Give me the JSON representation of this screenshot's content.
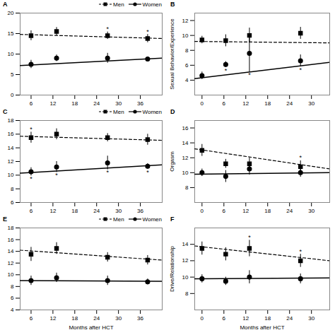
{
  "chart_data": [
    {
      "type": "scatter",
      "title": "A",
      "x": [
        6,
        13,
        27,
        38
      ],
      "xlim": [
        3,
        42
      ],
      "xticks": [
        6,
        12,
        18,
        24,
        30,
        36
      ],
      "ylim": [
        0,
        20
      ],
      "yticks": [
        0,
        5,
        10,
        15,
        20
      ],
      "legend": "upper right",
      "series": [
        {
          "name": "Men",
          "color": "black",
          "marker": "square",
          "line_style": "dashed",
          "values": [
            14.5,
            15.5,
            14.5,
            13.8
          ],
          "errors": [
            1.2,
            1.0,
            0.9,
            1.0
          ],
          "annotations": [
            null,
            null,
            "*",
            "*"
          ],
          "trend": {
            "x": [
              3,
              42
            ],
            "values": [
              14.8,
              13.8
            ]
          }
        },
        {
          "name": "Women",
          "color": "black",
          "marker": "circle",
          "line_style": "solid",
          "values": [
            7.5,
            9.0,
            9.0,
            8.8
          ],
          "errors": [
            1.0,
            0.8,
            1.2,
            0.5
          ],
          "annotations": [
            null,
            null,
            null,
            null
          ],
          "trend": {
            "x": [
              3,
              42
            ],
            "values": [
              7.2,
              9.0
            ]
          }
        }
      ]
    },
    {
      "type": "scatter",
      "title": "B",
      "ylabel": "Sexual Behavior/Experience",
      "x": [
        0,
        6.5,
        13,
        27
      ],
      "xlim": [
        -2,
        35
      ],
      "xticks": [
        0,
        6,
        12,
        18,
        24,
        30
      ],
      "ylim": [
        2,
        13
      ],
      "yticks": [
        4,
        6,
        8,
        10,
        12
      ],
      "series": [
        {
          "name": "Men",
          "color": "black",
          "marker": "square",
          "line_style": "dashed",
          "values": [
            9.4,
            9.3,
            10.0,
            10.3
          ],
          "errors": [
            0.5,
            0.8,
            1.0,
            0.8
          ],
          "annotations": [
            null,
            null,
            null,
            null
          ],
          "trend": {
            "x": [
              -2,
              35
            ],
            "values": [
              9.2,
              9.0
            ]
          }
        },
        {
          "name": "Women",
          "color": "black",
          "marker": "circle",
          "line_style": "solid",
          "values": [
            4.6,
            6.1,
            7.6,
            6.6
          ],
          "errors": [
            0.5,
            0.4,
            2.5,
            0.8
          ],
          "annotations": [
            null,
            "*",
            "*",
            "*"
          ],
          "trend": {
            "x": [
              -2,
              35
            ],
            "values": [
              4.2,
              6.4
            ]
          }
        }
      ]
    },
    {
      "type": "scatter",
      "title": "C",
      "x": [
        6,
        13,
        27,
        38
      ],
      "xlim": [
        3,
        42
      ],
      "xticks": [
        6,
        12,
        18,
        24,
        30,
        36
      ],
      "ylim": [
        6,
        18
      ],
      "yticks": [
        6,
        8,
        10,
        12,
        14,
        16,
        18
      ],
      "legend": "upper right",
      "series": [
        {
          "name": "Men",
          "color": "black",
          "marker": "square",
          "line_style": "dashed",
          "values": [
            15.5,
            16.0,
            15.5,
            15.2
          ],
          "errors": [
            0.8,
            0.8,
            0.6,
            0.8
          ],
          "annotations": [
            "*",
            null,
            null,
            null
          ],
          "trend": {
            "x": [
              3,
              42
            ],
            "values": [
              15.7,
              15.1
            ]
          }
        },
        {
          "name": "Women",
          "color": "black",
          "marker": "circle",
          "line_style": "solid",
          "values": [
            10.5,
            11.2,
            11.8,
            11.3
          ],
          "errors": [
            0.6,
            0.8,
            1.0,
            0.4
          ],
          "annotations": [
            "*",
            "*",
            "*",
            "*"
          ],
          "trend": {
            "x": [
              3,
              42
            ],
            "values": [
              10.3,
              11.5
            ]
          }
        }
      ]
    },
    {
      "type": "scatter",
      "title": "D",
      "ylabel": "Orgasm",
      "x": [
        0,
        6.5,
        13,
        27
      ],
      "xlim": [
        -2,
        35
      ],
      "xticks": [
        0,
        6,
        12,
        18,
        24,
        30
      ],
      "ylim": [
        6,
        17
      ],
      "yticks": [
        8,
        10,
        12,
        14,
        16
      ],
      "series": [
        {
          "name": "Men",
          "color": "black",
          "marker": "square",
          "line_style": "dashed",
          "values": [
            13.0,
            11.2,
            11.2,
            10.8
          ],
          "errors": [
            0.8,
            0.6,
            0.8,
            0.8
          ],
          "annotations": [
            null,
            null,
            null,
            "*"
          ],
          "trend": {
            "x": [
              -2,
              35
            ],
            "values": [
              13.2,
              10.5
            ]
          }
        },
        {
          "name": "Women",
          "color": "black",
          "marker": "circle",
          "line_style": "solid",
          "values": [
            10.0,
            9.5,
            10.5,
            10.0
          ],
          "errors": [
            0.5,
            0.8,
            0.8,
            0.6
          ],
          "annotations": [
            null,
            null,
            null,
            null
          ],
          "trend": {
            "x": [
              -2,
              35
            ],
            "values": [
              9.8,
              10.0
            ]
          }
        }
      ]
    },
    {
      "type": "scatter",
      "title": "E",
      "xlabel": "Months after HCT",
      "x": [
        6,
        13,
        27,
        38
      ],
      "xlim": [
        3,
        42
      ],
      "xticks": [
        6,
        12,
        18,
        24,
        30,
        36
      ],
      "ylim": [
        4,
        18
      ],
      "yticks": [
        4,
        6,
        8,
        10,
        12,
        14,
        16,
        18
      ],
      "legend": "upper right",
      "series": [
        {
          "name": "Men",
          "color": "black",
          "marker": "square",
          "line_style": "dashed",
          "values": [
            13.5,
            14.5,
            13.0,
            12.5
          ],
          "errors": [
            1.2,
            1.0,
            0.8,
            0.8
          ],
          "annotations": [
            null,
            null,
            null,
            null
          ],
          "trend": {
            "x": [
              3,
              42
            ],
            "values": [
              14.2,
              12.5
            ]
          }
        },
        {
          "name": "Women",
          "color": "black",
          "marker": "circle",
          "line_style": "solid",
          "values": [
            9.0,
            9.5,
            9.0,
            8.8
          ],
          "errors": [
            0.8,
            0.8,
            0.8,
            0.5
          ],
          "annotations": [
            null,
            null,
            null,
            null
          ],
          "trend": {
            "x": [
              3,
              42
            ],
            "values": [
              9.0,
              8.9
            ]
          }
        }
      ]
    },
    {
      "type": "scatter",
      "title": "F",
      "ylabel": "Drive/Relationship",
      "xlabel": "Months after HCT",
      "x": [
        0,
        6.5,
        13,
        27
      ],
      "xlim": [
        -2,
        35
      ],
      "xticks": [
        0,
        6,
        12,
        18,
        24,
        30
      ],
      "ylim": [
        6,
        16
      ],
      "yticks": [
        8,
        10,
        12,
        14
      ],
      "series": [
        {
          "name": "Men",
          "color": "black",
          "marker": "square",
          "line_style": "dashed",
          "values": [
            13.5,
            12.8,
            13.5,
            12.0
          ],
          "errors": [
            0.8,
            0.8,
            1.0,
            0.8
          ],
          "annotations": [
            null,
            null,
            "*",
            "*"
          ],
          "trend": {
            "x": [
              -2,
              35
            ],
            "values": [
              13.8,
              12.0
            ]
          }
        },
        {
          "name": "Women",
          "color": "black",
          "marker": "circle",
          "line_style": "solid",
          "values": [
            9.8,
            9.5,
            10.0,
            9.8
          ],
          "errors": [
            0.5,
            0.5,
            0.8,
            0.6
          ],
          "annotations": [
            null,
            null,
            null,
            null
          ],
          "trend": {
            "x": [
              -2,
              35
            ],
            "values": [
              9.8,
              9.9
            ]
          }
        }
      ]
    }
  ]
}
